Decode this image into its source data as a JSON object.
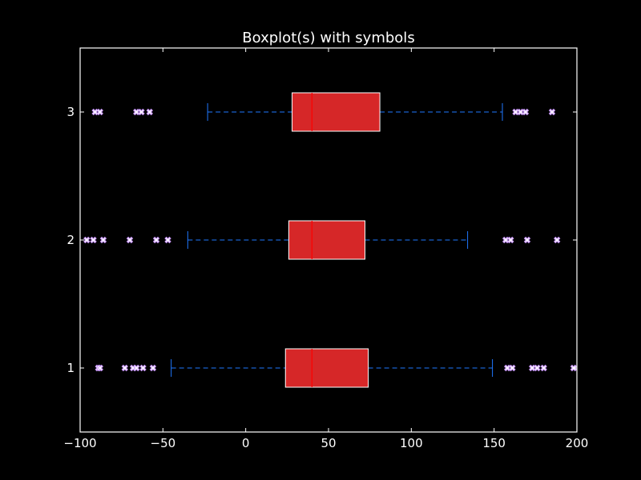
{
  "chart_data": {
    "type": "boxplot",
    "orientation": "horizontal",
    "title": "Boxplot(s) with symbols",
    "xlabel": "",
    "ylabel": "",
    "xlim": [
      -100,
      200
    ],
    "ylim": [
      0.5,
      3.5
    ],
    "x_ticks": [
      -100,
      -50,
      0,
      50,
      100,
      150,
      200
    ],
    "x_tick_labels": [
      "−100",
      "−50",
      "0",
      "50",
      "100",
      "150",
      "200"
    ],
    "y_ticks": [
      1,
      2,
      3
    ],
    "y_tick_labels": [
      "1",
      "2",
      "3"
    ],
    "grid": false,
    "colors": {
      "background": "#000000",
      "axes": "#ffffff",
      "box_fill": "#d62728",
      "box_edge": "#ffffff",
      "median": "#ff0000",
      "whisker": "#1f77ff",
      "flier_fill": "#ffffff",
      "flier_edge": "#cc99ff"
    },
    "flier_marker": "x-filled",
    "boxes": [
      {
        "position": 1,
        "whisker_low": -45,
        "q1": 24,
        "median": 40,
        "q3": 74,
        "whisker_high": 149,
        "fliers": [
          -89,
          -88,
          -73,
          -68,
          -66,
          -62,
          -56,
          158,
          161,
          173,
          176,
          180,
          198
        ]
      },
      {
        "position": 2,
        "whisker_low": -35,
        "q1": 26,
        "median": 40,
        "q3": 72,
        "whisker_high": 134,
        "fliers": [
          -96,
          -92,
          -86,
          -70,
          -54,
          -47,
          157,
          160,
          170,
          188
        ]
      },
      {
        "position": 3,
        "whisker_low": -23,
        "q1": 28,
        "median": 40,
        "q3": 81,
        "whisker_high": 155,
        "fliers": [
          -91,
          -88,
          -66,
          -63,
          -58,
          163,
          166,
          169,
          185
        ]
      }
    ]
  }
}
